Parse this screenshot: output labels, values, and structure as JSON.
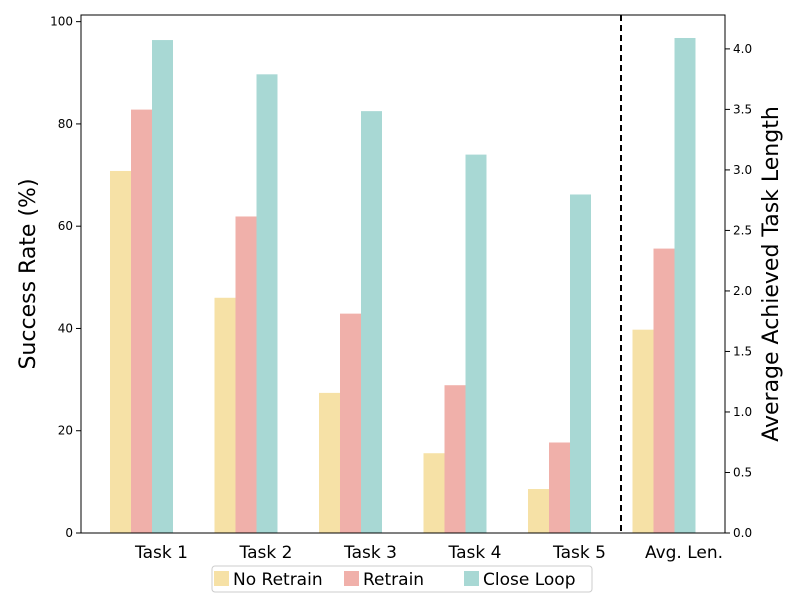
{
  "colors": {
    "No Retrain": "#f6e1a6",
    "Retrain": "#f0b0aa",
    "Close Loop": "#a8d8d4"
  },
  "chart_data": {
    "type": "bar",
    "categories": [
      "Task 1",
      "Task 2",
      "Task 3",
      "Task 4",
      "Task 5",
      "Avg. Len."
    ],
    "series": [
      {
        "name": "No Retrain",
        "values": [
          70.8,
          46.0,
          27.4,
          15.6,
          8.6,
          1.68
        ]
      },
      {
        "name": "Retrain",
        "values": [
          82.8,
          61.9,
          42.9,
          28.9,
          17.7,
          2.35
        ]
      },
      {
        "name": "Close Loop",
        "values": [
          96.4,
          89.7,
          82.5,
          74.0,
          66.2,
          4.09
        ]
      }
    ],
    "ylabel": "Success Rate (%)",
    "ylabel_right": "Average Achieved Task Length",
    "ylim": [
      0,
      101.3
    ],
    "ylim_right": [
      0,
      4.28
    ],
    "yticks": [
      "0",
      "20",
      "40",
      "60",
      "80",
      "100"
    ],
    "yticks_right": [
      "0.0",
      "0.5",
      "1.0",
      "1.5",
      "2.0",
      "2.5",
      "3.0",
      "3.5",
      "4.0"
    ],
    "right_axis_categories": [
      "Avg. Len."
    ],
    "separator": "dashed line between Task 5 and Avg. Len.",
    "legend_position": "bottom-center",
    "grid": false
  }
}
